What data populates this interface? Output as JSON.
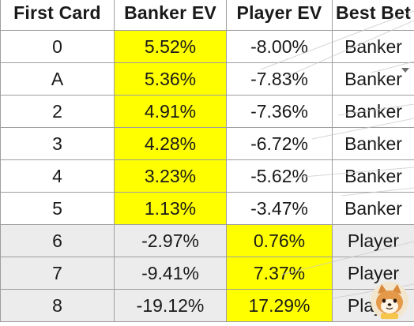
{
  "table": {
    "headers": [
      "First Card",
      "Banker EV",
      "Player EV",
      "Best Bet"
    ],
    "rows": [
      {
        "card": "0",
        "banker_ev": "5.52%",
        "player_ev": "-8.00%",
        "best_bet": "Banker"
      },
      {
        "card": "A",
        "banker_ev": "5.36%",
        "player_ev": "-7.83%",
        "best_bet": "Banker"
      },
      {
        "card": "2",
        "banker_ev": "4.91%",
        "player_ev": "-7.36%",
        "best_bet": "Banker"
      },
      {
        "card": "3",
        "banker_ev": "4.28%",
        "player_ev": "-6.72%",
        "best_bet": "Banker"
      },
      {
        "card": "4",
        "banker_ev": "3.23%",
        "player_ev": "-5.62%",
        "best_bet": "Banker"
      },
      {
        "card": "5",
        "banker_ev": "1.13%",
        "player_ev": "-3.47%",
        "best_bet": "Banker"
      },
      {
        "card": "6",
        "banker_ev": "-2.97%",
        "player_ev": "0.76%",
        "best_bet": "Player"
      },
      {
        "card": "7",
        "banker_ev": "-9.41%",
        "player_ev": "7.37%",
        "best_bet": "Player"
      },
      {
        "card": "8",
        "banker_ev": "-19.12%",
        "player_ev": "17.29%",
        "best_bet": "Player"
      }
    ]
  },
  "colors": {
    "highlight": "#ffff00",
    "grid": "#9e9e9e",
    "alt_row": "#ececec"
  },
  "icons": {
    "dropdown": "chevron-down-icon",
    "mascot": "shiba-dog-icon"
  }
}
